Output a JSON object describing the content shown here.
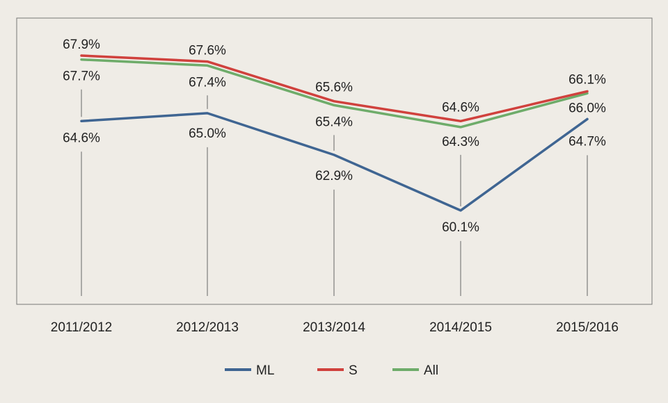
{
  "chart_data": {
    "type": "line",
    "title": "",
    "xlabel": "",
    "ylabel": "",
    "categories": [
      "2011/2012",
      "2012/2013",
      "2013/2014",
      "2014/2015",
      "2015/2016"
    ],
    "ylim": [
      56,
      70
    ],
    "grid": false,
    "legend_position": "bottom-center",
    "series": [
      {
        "name": "ML",
        "color": "#3f6592",
        "values": [
          64.6,
          65.0,
          62.9,
          60.1,
          64.7
        ],
        "labels": [
          "64.6%",
          "65.0%",
          "62.9%",
          "60.1%",
          "64.7%"
        ]
      },
      {
        "name": "S",
        "color": "#d0413d",
        "values": [
          67.9,
          67.6,
          65.6,
          64.6,
          66.1
        ],
        "labels": [
          "67.9%",
          "67.6%",
          "65.6%",
          "64.6%",
          "66.1%"
        ]
      },
      {
        "name": "All",
        "color": "#6eac6a",
        "values": [
          67.7,
          67.4,
          65.4,
          64.3,
          66.0
        ],
        "labels": [
          "67.7%",
          "67.4%",
          "65.4%",
          "64.3%",
          "66.0%"
        ]
      }
    ]
  }
}
